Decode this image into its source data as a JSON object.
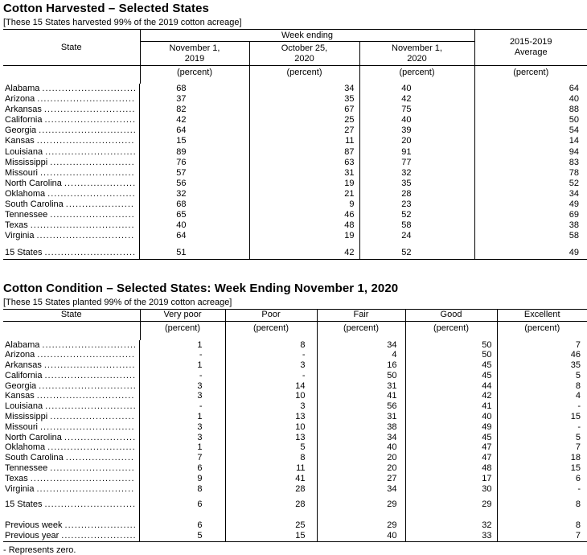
{
  "harvested": {
    "title": "Cotton Harvested – Selected States",
    "note": "[These 15 States harvested 99% of the 2019 cotton acreage]",
    "state_header": "State",
    "group_header": "Week ending",
    "avg_header": "2015-2019\nAverage",
    "columns": [
      "November 1,\n2019",
      "October 25,\n2020",
      "November 1,\n2020"
    ],
    "unit": "(percent)",
    "rows": [
      {
        "label": "Alabama",
        "values": [
          "68",
          "34",
          "40",
          "64"
        ]
      },
      {
        "label": "Arizona",
        "values": [
          "37",
          "35",
          "42",
          "40"
        ]
      },
      {
        "label": "Arkansas",
        "values": [
          "82",
          "67",
          "75",
          "88"
        ]
      },
      {
        "label": "California",
        "values": [
          "42",
          "25",
          "40",
          "50"
        ]
      },
      {
        "label": "Georgia",
        "values": [
          "64",
          "27",
          "39",
          "54"
        ]
      },
      {
        "label": "Kansas",
        "values": [
          "15",
          "11",
          "20",
          "14"
        ]
      },
      {
        "label": "Louisiana",
        "values": [
          "89",
          "87",
          "91",
          "94"
        ]
      },
      {
        "label": "Mississippi",
        "values": [
          "76",
          "63",
          "77",
          "83"
        ]
      },
      {
        "label": "Missouri",
        "values": [
          "57",
          "31",
          "32",
          "78"
        ]
      },
      {
        "label": "North Carolina",
        "values": [
          "56",
          "19",
          "35",
          "52"
        ]
      },
      {
        "label": "Oklahoma",
        "values": [
          "32",
          "21",
          "28",
          "34"
        ]
      },
      {
        "label": "South Carolina",
        "values": [
          "68",
          "9",
          "23",
          "49"
        ]
      },
      {
        "label": "Tennessee",
        "values": [
          "65",
          "46",
          "52",
          "69"
        ]
      },
      {
        "label": "Texas",
        "values": [
          "40",
          "48",
          "58",
          "38"
        ]
      },
      {
        "label": "Virginia",
        "values": [
          "64",
          "19",
          "24",
          "58"
        ]
      },
      {
        "label": "15 States",
        "values": [
          "51",
          "42",
          "52",
          "49"
        ],
        "gap": "sm",
        "summary": true
      }
    ]
  },
  "condition": {
    "title": "Cotton Condition – Selected States: Week Ending November 1, 2020",
    "note": "[These 15 States planted 99% of the 2019 cotton acreage]",
    "state_header": "State",
    "columns": [
      "Very poor",
      "Poor",
      "Fair",
      "Good",
      "Excellent"
    ],
    "unit": "(percent)",
    "rows": [
      {
        "label": "Alabama",
        "values": [
          "1",
          "8",
          "34",
          "50",
          "7"
        ]
      },
      {
        "label": "Arizona",
        "values": [
          "-",
          "-",
          "4",
          "50",
          "46"
        ]
      },
      {
        "label": "Arkansas",
        "values": [
          "1",
          "3",
          "16",
          "45",
          "35"
        ]
      },
      {
        "label": "California",
        "values": [
          "-",
          "-",
          "50",
          "45",
          "5"
        ]
      },
      {
        "label": "Georgia",
        "values": [
          "3",
          "14",
          "31",
          "44",
          "8"
        ]
      },
      {
        "label": "Kansas",
        "values": [
          "3",
          "10",
          "41",
          "42",
          "4"
        ]
      },
      {
        "label": "Louisiana",
        "values": [
          "-",
          "3",
          "56",
          "41",
          "-"
        ]
      },
      {
        "label": "Mississippi",
        "values": [
          "1",
          "13",
          "31",
          "40",
          "15"
        ]
      },
      {
        "label": "Missouri",
        "values": [
          "3",
          "10",
          "38",
          "49",
          "-"
        ]
      },
      {
        "label": "North Carolina",
        "values": [
          "3",
          "13",
          "34",
          "45",
          "5"
        ]
      },
      {
        "label": "Oklahoma",
        "values": [
          "1",
          "5",
          "40",
          "47",
          "7"
        ]
      },
      {
        "label": "South Carolina",
        "values": [
          "7",
          "8",
          "20",
          "47",
          "18"
        ]
      },
      {
        "label": "Tennessee",
        "values": [
          "6",
          "11",
          "20",
          "48",
          "15"
        ]
      },
      {
        "label": "Texas",
        "values": [
          "9",
          "41",
          "27",
          "17",
          "6"
        ]
      },
      {
        "label": "Virginia",
        "values": [
          "8",
          "28",
          "34",
          "30",
          "-"
        ]
      },
      {
        "label": "15 States",
        "values": [
          "6",
          "28",
          "29",
          "29",
          "8"
        ],
        "gap": "sm",
        "summary": true
      },
      {
        "label": "Previous week",
        "values": [
          "6",
          "25",
          "29",
          "32",
          "8"
        ],
        "gap": "md",
        "summary": true
      },
      {
        "label": "Previous year",
        "values": [
          "5",
          "15",
          "40",
          "33",
          "7"
        ],
        "summary": true
      }
    ]
  },
  "footnote": "- Represents zero."
}
